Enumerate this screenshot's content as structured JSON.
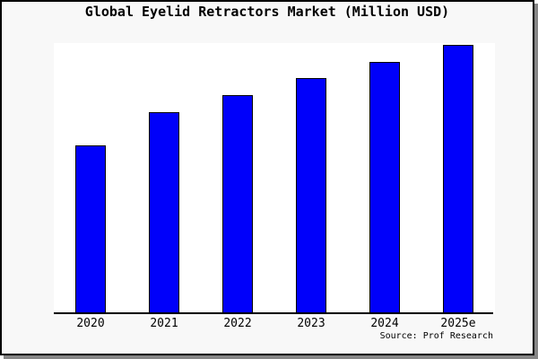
{
  "window": {
    "background_color": "#f8f8f8",
    "frame_color": "#000000",
    "shadow_color": "#868686",
    "plot_background_color": "#ffffff"
  },
  "chart_data": {
    "type": "bar",
    "title": "Global Eyelid Retractors Market (Million USD)",
    "categories": [
      "2020",
      "2021",
      "2022",
      "2023",
      "2024",
      "2025e"
    ],
    "values": [
      62.7,
      75.2,
      81.4,
      87.8,
      93.7,
      100
    ],
    "value_scale_note": "relative index estimated from bar heights; y-axis has no tick labels; 2025e bar = 100",
    "xlabel": "",
    "ylabel": "",
    "ylim": [
      0,
      100.8
    ],
    "grid": false,
    "legend": false,
    "bar_color": "#0000fa",
    "bar_border_color": "#000000",
    "axis_line_color": "#000000"
  },
  "source": {
    "label": "Source: Prof Research"
  }
}
